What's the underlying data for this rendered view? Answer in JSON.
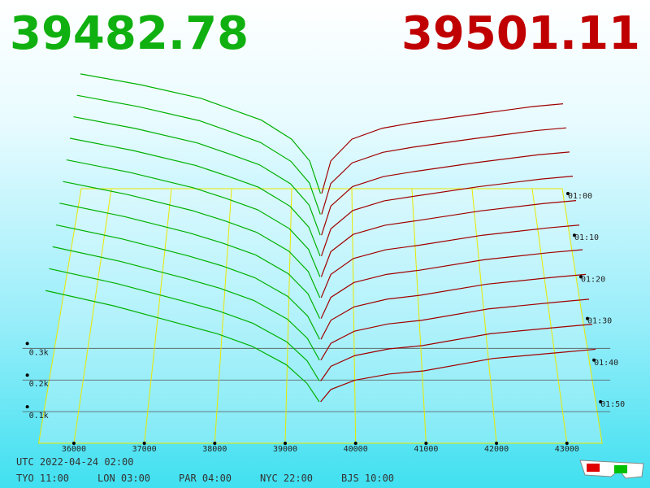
{
  "header": {
    "bid": "39482.78",
    "ask": "39501.11"
  },
  "chart_data": {
    "type": "depth3d",
    "xlim": [
      35500,
      43500
    ],
    "xticks": [
      36000,
      37000,
      38000,
      39000,
      40000,
      41000,
      42000,
      43000
    ],
    "ylim": [
      0,
      450
    ],
    "yticks": [
      {
        "value": 100,
        "label": "0.1k"
      },
      {
        "value": 200,
        "label": "0.2k"
      },
      {
        "value": 300,
        "label": "0.3k"
      }
    ],
    "categories": [
      "01:00",
      null,
      "01:10",
      null,
      "01:20",
      null,
      "01:30",
      null,
      "01:40",
      null,
      "01:50"
    ],
    "bid_color": "#00b000",
    "ask_color": "#a00000",
    "bid_prices": [
      35500,
      36500,
      37500,
      38000,
      38500,
      39000,
      39300,
      39480
    ],
    "ask_prices": [
      39500,
      39650,
      40000,
      40500,
      41000,
      42000,
      43000,
      43500
    ],
    "slices": [
      {
        "bids": [
          440,
          400,
          350,
          310,
          270,
          200,
          120,
          0
        ],
        "asks": [
          0,
          120,
          200,
          240,
          260,
          290,
          320,
          330
        ]
      },
      {
        "bids": [
          432,
          391,
          340,
          301,
          261,
          192,
          114,
          0
        ],
        "asks": [
          0,
          112,
          187,
          225,
          244,
          275,
          304,
          314
        ]
      },
      {
        "bids": [
          424,
          382,
          330,
          292,
          252,
          184,
          108,
          0
        ],
        "asks": [
          0,
          104,
          174,
          210,
          228,
          260,
          288,
          298
        ]
      },
      {
        "bids": [
          416,
          373,
          320,
          283,
          243,
          176,
          102,
          0
        ],
        "asks": [
          0,
          96,
          161,
          195,
          212,
          245,
          272,
          282
        ]
      },
      {
        "bids": [
          408,
          364,
          310,
          274,
          234,
          168,
          96,
          0
        ],
        "asks": [
          0,
          88,
          148,
          180,
          196,
          230,
          256,
          266
        ]
      },
      {
        "bids": [
          400,
          355,
          300,
          265,
          225,
          160,
          90,
          0
        ],
        "asks": [
          0,
          80,
          135,
          165,
          180,
          215,
          240,
          250
        ]
      },
      {
        "bids": [
          392,
          346,
          290,
          256,
          216,
          152,
          84,
          0
        ],
        "asks": [
          0,
          72,
          122,
          150,
          164,
          200,
          224,
          234
        ]
      },
      {
        "bids": [
          384,
          337,
          280,
          247,
          207,
          144,
          78,
          0
        ],
        "asks": [
          0,
          64,
          109,
          135,
          148,
          185,
          208,
          218
        ]
      },
      {
        "bids": [
          376,
          328,
          270,
          238,
          198,
          136,
          72,
          0
        ],
        "asks": [
          0,
          56,
          96,
          120,
          132,
          170,
          192,
          202
        ]
      },
      {
        "bids": [
          368,
          319,
          260,
          229,
          189,
          128,
          66,
          0
        ],
        "asks": [
          0,
          48,
          83,
          105,
          116,
          155,
          176,
          186
        ]
      },
      {
        "bids": [
          360,
          310,
          250,
          220,
          180,
          120,
          60,
          0
        ],
        "asks": [
          0,
          40,
          70,
          90,
          100,
          140,
          160,
          170
        ]
      }
    ]
  },
  "footer": {
    "utc": "UTC 2022-04-24 02:00",
    "cities": [
      "TYO 11:00",
      "LON 03:00",
      "PAR 04:00",
      "NYC 22:00",
      "BJS 10:00"
    ]
  }
}
